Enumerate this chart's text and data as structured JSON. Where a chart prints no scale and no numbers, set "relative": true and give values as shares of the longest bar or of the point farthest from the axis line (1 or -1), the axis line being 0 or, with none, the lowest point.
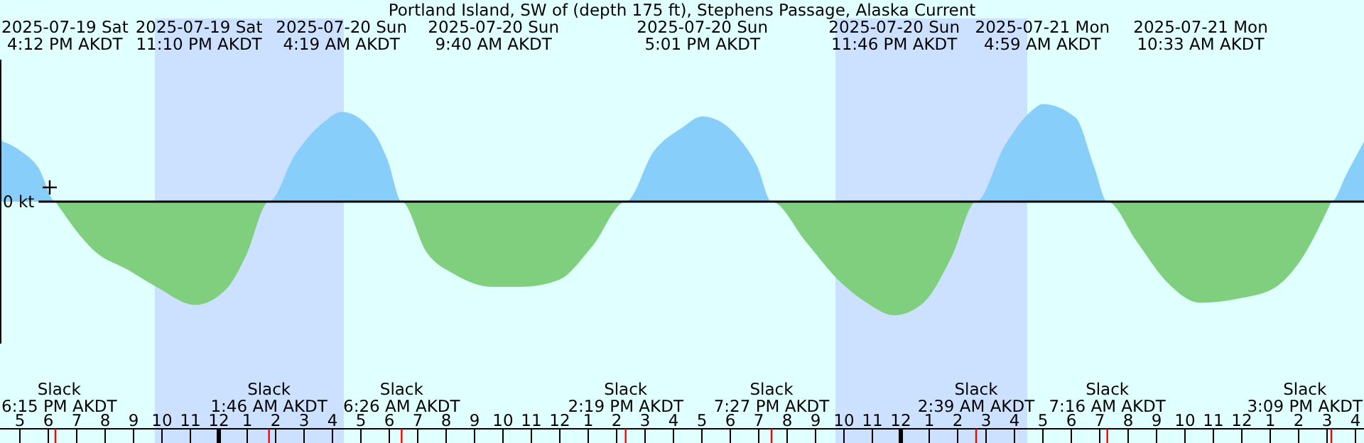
{
  "chart_data": {
    "type": "area",
    "title": "Portland Island, SW of (depth 175 ft), Stephens Passage, Alaska Current",
    "relative": true,
    "xlim": [
      "2025-07-19T16:18",
      "2025-07-21T16:18"
    ],
    "xticks": [
      {
        "value": "2025-07-19T17:00",
        "label": "5"
      },
      {
        "value": "2025-07-19T18:00",
        "label": "6"
      },
      {
        "value": "2025-07-19T19:00",
        "label": "7"
      },
      {
        "value": "2025-07-19T20:00",
        "label": "8"
      },
      {
        "value": "2025-07-19T21:00",
        "label": "9"
      },
      {
        "value": "2025-07-19T22:00",
        "label": "10"
      },
      {
        "value": "2025-07-19T23:00",
        "label": "11"
      },
      {
        "value": "2025-07-20T00:00",
        "label": "12"
      },
      {
        "value": "2025-07-20T01:00",
        "label": "1"
      },
      {
        "value": "2025-07-20T02:00",
        "label": "2"
      },
      {
        "value": "2025-07-20T03:00",
        "label": "3"
      },
      {
        "value": "2025-07-20T04:00",
        "label": "4"
      },
      {
        "value": "2025-07-20T05:00",
        "label": "5"
      },
      {
        "value": "2025-07-20T06:00",
        "label": "6"
      },
      {
        "value": "2025-07-20T07:00",
        "label": "7"
      },
      {
        "value": "2025-07-20T08:00",
        "label": "8"
      },
      {
        "value": "2025-07-20T09:00",
        "label": "9"
      },
      {
        "value": "2025-07-20T10:00",
        "label": "10"
      },
      {
        "value": "2025-07-20T11:00",
        "label": "11"
      },
      {
        "value": "2025-07-20T12:00",
        "label": "12"
      },
      {
        "value": "2025-07-20T13:00",
        "label": "1"
      },
      {
        "value": "2025-07-20T14:00",
        "label": "2"
      },
      {
        "value": "2025-07-20T15:00",
        "label": "3"
      },
      {
        "value": "2025-07-20T16:00",
        "label": "4"
      },
      {
        "value": "2025-07-20T17:00",
        "label": "5"
      },
      {
        "value": "2025-07-20T18:00",
        "label": "6"
      },
      {
        "value": "2025-07-20T19:00",
        "label": "7"
      },
      {
        "value": "2025-07-20T20:00",
        "label": "8"
      },
      {
        "value": "2025-07-20T21:00",
        "label": "9"
      },
      {
        "value": "2025-07-20T22:00",
        "label": "10"
      },
      {
        "value": "2025-07-20T23:00",
        "label": "11"
      },
      {
        "value": "2025-07-21T00:00",
        "label": "12"
      },
      {
        "value": "2025-07-21T01:00",
        "label": "1"
      },
      {
        "value": "2025-07-21T02:00",
        "label": "2"
      },
      {
        "value": "2025-07-21T03:00",
        "label": "3"
      },
      {
        "value": "2025-07-21T04:00",
        "label": "4"
      },
      {
        "value": "2025-07-21T05:00",
        "label": "5"
      },
      {
        "value": "2025-07-21T06:00",
        "label": "6"
      },
      {
        "value": "2025-07-21T07:00",
        "label": "7"
      },
      {
        "value": "2025-07-21T08:00",
        "label": "8"
      },
      {
        "value": "2025-07-21T09:00",
        "label": "9"
      },
      {
        "value": "2025-07-21T10:00",
        "label": "10"
      },
      {
        "value": "2025-07-21T11:00",
        "label": "11"
      },
      {
        "value": "2025-07-21T12:00",
        "label": "12"
      },
      {
        "value": "2025-07-21T13:00",
        "label": "1"
      },
      {
        "value": "2025-07-21T14:00",
        "label": "2"
      },
      {
        "value": "2025-07-21T15:00",
        "label": "3"
      },
      {
        "value": "2025-07-21T16:00",
        "label": "4"
      }
    ],
    "series": [
      {
        "color": "#87cefa",
        "x": [
          "2025-07-19T16:18",
          "2025-07-19T17:00",
          "2025-07-19T17:39",
          "2025-07-19T18:15",
          "2025-07-20T01:46",
          "2025-07-20T02:39",
          "2025-07-20T03:39",
          "2025-07-20T04:19",
          "2025-07-20T05:27",
          "2025-07-20T05:57",
          "2025-07-20T06:26",
          "2025-07-20T14:19",
          "2025-07-20T15:18",
          "2025-07-20T16:18",
          "2025-07-20T17:01",
          "2025-07-20T18:18",
          "2025-07-20T18:57",
          "2025-07-20T19:27",
          "2025-07-21T02:39",
          "2025-07-21T03:39",
          "2025-07-21T04:39",
          "2025-07-21T04:59",
          "2025-07-21T06:09",
          "2025-07-21T06:48",
          "2025-07-21T07:16",
          "2025-07-21T15:09",
          "2025-07-21T15:42",
          "2025-07-21T16:18"
        ],
        "values": [
          0.54,
          0.45,
          0.3,
          0,
          0,
          0.4,
          0.69,
          0.79,
          0.61,
          0.36,
          0,
          0,
          0.44,
          0.65,
          0.75,
          0.56,
          0.31,
          0,
          0,
          0.49,
          0.81,
          0.86,
          0.74,
          0.31,
          0,
          0,
          0.25,
          0.53
        ]
      },
      {
        "color": "#7fcf7f",
        "x": [
          "2025-07-19T18:15",
          "2025-07-19T19:39",
          "2025-07-19T20:48",
          "2025-07-19T21:48",
          "2025-07-19T23:10",
          "2025-07-20T00:18",
          "2025-07-20T00:57",
          "2025-07-20T01:46",
          "2025-07-20T06:26",
          "2025-07-20T07:18",
          "2025-07-20T08:18",
          "2025-07-20T09:40",
          "2025-07-20T10:39",
          "2025-07-20T11:57",
          "2025-07-20T13:09",
          "2025-07-20T14:19",
          "2025-07-20T19:27",
          "2025-07-20T20:39",
          "2025-07-20T21:48",
          "2025-07-20T22:48",
          "2025-07-20T23:46",
          "2025-07-21T00:48",
          "2025-07-21T01:48",
          "2025-07-21T02:39",
          "2025-07-21T07:16",
          "2025-07-21T08:18",
          "2025-07-21T09:18",
          "2025-07-21T10:33",
          "2025-07-21T11:57",
          "2025-07-21T13:09",
          "2025-07-21T13:57",
          "2025-07-21T15:09"
        ],
        "values": [
          0,
          -0.44,
          -0.6,
          -0.75,
          -0.91,
          -0.76,
          -0.48,
          0,
          0,
          -0.44,
          -0.64,
          -0.75,
          -0.75,
          -0.69,
          -0.39,
          0,
          0,
          -0.35,
          -0.69,
          -0.89,
          -1,
          -0.89,
          -0.48,
          0,
          0,
          -0.35,
          -0.69,
          -0.89,
          -0.85,
          -0.76,
          -0.56,
          0
        ]
      }
    ],
    "bands": [
      {
        "axis": "x",
        "from": "2025-07-19T21:45",
        "to": "2025-07-20T04:24",
        "color": "#cce0ff"
      },
      {
        "axis": "x",
        "from": "2025-07-20T21:42",
        "to": "2025-07-21T04:27",
        "color": "#cce0ff"
      }
    ],
    "ref_lines": [
      {
        "axis": "y",
        "value": 0,
        "label": "0 kt",
        "color": "#000000"
      }
    ],
    "annotations": [
      "2025-07-19 Sat\n4:12 PM AKDT",
      "2025-07-19 Sat\n11:10 PM AKDT",
      "2025-07-20 Sun\n4:19 AM AKDT",
      "2025-07-20 Sun\n9:40 AM AKDT",
      "2025-07-20 Sun\n5:01 PM AKDT",
      "2025-07-20 Sun\n11:46 PM AKDT",
      "2025-07-21 Mon\n4:59 AM AKDT",
      "2025-07-21 Mon\n10:33 AM AKDT",
      "Slack\n6:15 PM AKDT",
      "Slack\n1:46 AM AKDT",
      "Slack\n6:26 AM AKDT",
      "Slack\n2:19 PM AKDT",
      "Slack\n7:27 PM AKDT",
      "Slack\n2:39 AM AKDT",
      "Slack\n7:16 AM AKDT",
      "Slack\n3:09 PM AKDT"
    ]
  }
}
